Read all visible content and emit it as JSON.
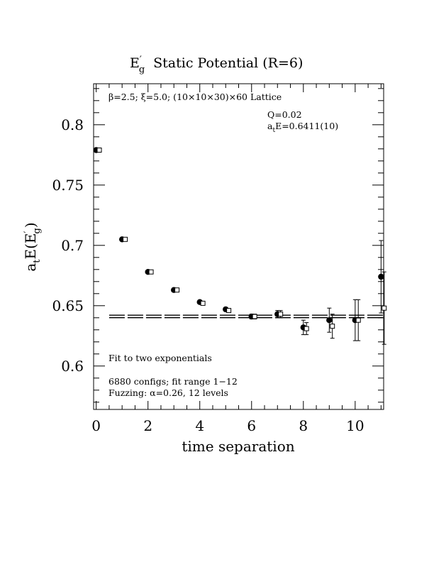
{
  "chart_data": {
    "type": "scatter",
    "title_main": "E",
    "title_sup": "′",
    "title_sub": "g",
    "title_rest": "Static Potential (R=6)",
    "xlabel": "time separation",
    "ylabel": {
      "pre": "a",
      "pre_sub": "t",
      "mid": "E(E",
      "mid_sup": "′",
      "mid_sub": "g",
      "post": ")"
    },
    "xlim": [
      -0.1,
      11.1
    ],
    "ylim": [
      0.564,
      0.834
    ],
    "x_ticks": [
      0,
      2,
      4,
      6,
      8,
      10
    ],
    "y_ticks": [
      0.6,
      0.65,
      0.7,
      0.75,
      0.8
    ],
    "x_tick_labels": [
      "0",
      "2",
      "4",
      "6",
      "8",
      "10"
    ],
    "y_tick_labels": [
      "0.6",
      "0.65",
      "0.7",
      "0.75",
      "0.8"
    ],
    "grid": false,
    "annotations": {
      "lattice": "β=2.5; ξ=5.0; (10×10×30)×60 Lattice",
      "q_value": "Q=0.02",
      "energy_pre": "a",
      "energy_sub": "t",
      "energy_post": "E=0.6411(10)",
      "fit": "Fit to two exponentials",
      "configs": "6880 configs; fit range 1−12",
      "fuzzing": "Fuzzing: α=0.26, 12 levels"
    },
    "series": [
      {
        "marker": "filled-circle",
        "points": [
          {
            "x": 0,
            "y": 0.779,
            "err": 0.001
          },
          {
            "x": 1,
            "y": 0.705,
            "err": 0.001
          },
          {
            "x": 2,
            "y": 0.678,
            "err": 0.001
          },
          {
            "x": 3,
            "y": 0.663,
            "err": 0.001
          },
          {
            "x": 4,
            "y": 0.653,
            "err": 0.001
          },
          {
            "x": 5,
            "y": 0.647,
            "err": 0.001
          },
          {
            "x": 6,
            "y": 0.641,
            "err": 0.002
          },
          {
            "x": 7,
            "y": 0.643,
            "err": 0.003
          },
          {
            "x": 8,
            "y": 0.632,
            "err": 0.006
          },
          {
            "x": 9,
            "y": 0.638,
            "err": 0.01
          },
          {
            "x": 10,
            "y": 0.638,
            "err": 0.017
          },
          {
            "x": 11,
            "y": 0.674,
            "err": 0.03
          }
        ]
      },
      {
        "marker": "open-square",
        "points": [
          {
            "x": 0,
            "y": 0.779,
            "err": 0.001
          },
          {
            "x": 1,
            "y": 0.705,
            "err": 0.001
          },
          {
            "x": 2,
            "y": 0.678,
            "err": 0.001
          },
          {
            "x": 3,
            "y": 0.663,
            "err": 0.001
          },
          {
            "x": 4,
            "y": 0.652,
            "err": 0.001
          },
          {
            "x": 5,
            "y": 0.646,
            "err": 0.001
          },
          {
            "x": 6,
            "y": 0.641,
            "err": 0.002
          },
          {
            "x": 7,
            "y": 0.643,
            "err": 0.003
          },
          {
            "x": 8,
            "y": 0.631,
            "err": 0.005
          },
          {
            "x": 9,
            "y": 0.633,
            "err": 0.01
          },
          {
            "x": 10,
            "y": 0.638,
            "err": 0.017
          },
          {
            "x": 11,
            "y": 0.648,
            "err": 0.03
          }
        ]
      }
    ],
    "fit_line": {
      "x_start": 0.5,
      "x_end": 11.1,
      "value": 0.6411,
      "err": 0.001
    }
  }
}
